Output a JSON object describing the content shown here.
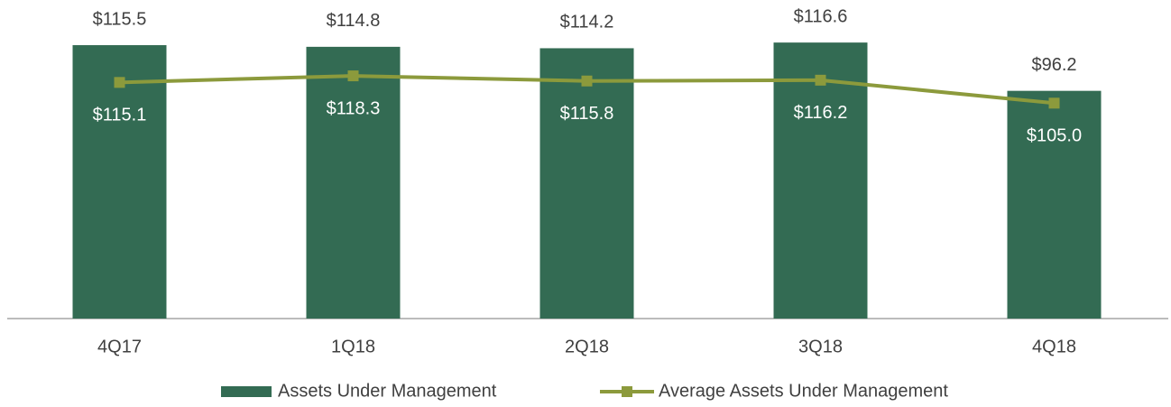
{
  "chart_data": {
    "type": "bar_line",
    "categories": [
      "4Q17",
      "1Q18",
      "2Q18",
      "3Q18",
      "4Q18"
    ],
    "series": [
      {
        "name": "Assets Under Management",
        "type": "bar",
        "color": "#336b53",
        "values": [
          115.5,
          114.8,
          114.2,
          116.6,
          96.2
        ],
        "value_labels": [
          "$115.5",
          "$114.8",
          "$114.2",
          "$116.6",
          "$96.2"
        ]
      },
      {
        "name": "Average Assets Under Management",
        "type": "line",
        "axis": "y2",
        "color": "#8c9a3c",
        "values": [
          115.1,
          118.3,
          115.8,
          116.2,
          105.0
        ],
        "value_labels": [
          "$115.1",
          "$118.3",
          "$115.8",
          "$116.2",
          "$105.0"
        ]
      }
    ],
    "ylim": [
      0,
      130
    ],
    "y2lim": [
      0,
      150
    ]
  }
}
